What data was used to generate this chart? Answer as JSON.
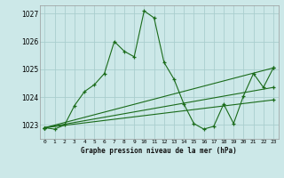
{
  "title": "Graphe pression niveau de la mer (hPa)",
  "bg_color": "#cce8e8",
  "grid_color": "#aacece",
  "line_color": "#1a6b1a",
  "xlim": [
    -0.5,
    23.5
  ],
  "ylim": [
    1022.5,
    1027.3
  ],
  "yticks": [
    1023,
    1024,
    1025,
    1026,
    1027
  ],
  "xtick_labels": [
    "0",
    "1",
    "2",
    "3",
    "4",
    "5",
    "6",
    "7",
    "8",
    "9",
    "10",
    "11",
    "12",
    "13",
    "14",
    "15",
    "16",
    "17",
    "18",
    "19",
    "20",
    "21",
    "22",
    "23"
  ],
  "series1_x": [
    0,
    1,
    2,
    3,
    4,
    5,
    6,
    7,
    8,
    9,
    10,
    11,
    12,
    13,
    14,
    15,
    16,
    17,
    18,
    19,
    20,
    21,
    22,
    23
  ],
  "series1_y": [
    1022.9,
    1022.85,
    1023.0,
    1023.7,
    1024.2,
    1024.45,
    1024.85,
    1026.0,
    1025.65,
    1025.45,
    1027.1,
    1026.85,
    1025.25,
    1024.65,
    1023.75,
    1023.05,
    1022.85,
    1022.95,
    1023.75,
    1023.05,
    1024.05,
    1024.85,
    1024.35,
    1025.05
  ],
  "series2_x": [
    0,
    23
  ],
  "series2_y": [
    1022.9,
    1024.35
  ],
  "series3_x": [
    0,
    23
  ],
  "series3_y": [
    1022.9,
    1023.9
  ],
  "series4_x": [
    0,
    23
  ],
  "series4_y": [
    1022.9,
    1025.05
  ]
}
